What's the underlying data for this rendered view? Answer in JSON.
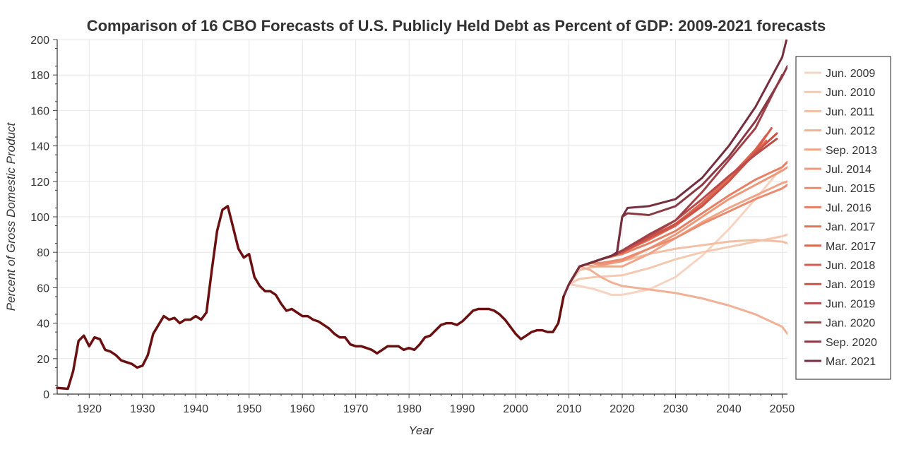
{
  "chart_data": {
    "type": "line",
    "title": "Comparison of 16 CBO Forecasts of U.S. Publicly Held Debt as Percent of GDP: 2009-2021 forecasts",
    "xlabel": "Year",
    "ylabel": "Percent of Gross Domestic Product",
    "xlim": [
      1914,
      2051
    ],
    "ylim": [
      0,
      200
    ],
    "grid": true,
    "legend_position": "right",
    "x_ticks": [
      1920,
      1930,
      1940,
      1950,
      1960,
      1970,
      1980,
      1990,
      2000,
      2010,
      2020,
      2030,
      2040,
      2050
    ],
    "y_ticks": [
      0,
      20,
      40,
      60,
      80,
      100,
      120,
      140,
      160,
      180,
      200
    ],
    "historical": {
      "x": [
        1914,
        1916,
        1917,
        1918,
        1919,
        1920,
        1921,
        1922,
        1923,
        1924,
        1925,
        1926,
        1927,
        1928,
        1929,
        1930,
        1931,
        1932,
        1933,
        1934,
        1935,
        1936,
        1937,
        1938,
        1939,
        1940,
        1941,
        1942,
        1943,
        1944,
        1945,
        1946,
        1947,
        1948,
        1949,
        1950,
        1951,
        1952,
        1953,
        1954,
        1955,
        1956,
        1957,
        1958,
        1959,
        1960,
        1961,
        1962,
        1963,
        1964,
        1965,
        1966,
        1967,
        1968,
        1969,
        1970,
        1971,
        1972,
        1973,
        1974,
        1975,
        1976,
        1977,
        1978,
        1979,
        1980,
        1981,
        1982,
        1983,
        1984,
        1985,
        1986,
        1987,
        1988,
        1989,
        1990,
        1991,
        1992,
        1993,
        1994,
        1995,
        1996,
        1997,
        1998,
        1999,
        2000,
        2001,
        2002,
        2003,
        2004,
        2005,
        2006,
        2007,
        2008,
        2009
      ],
      "y": [
        3.5,
        3,
        13,
        30,
        33,
        27,
        32,
        31,
        25,
        24,
        22,
        19,
        18,
        17,
        15,
        16,
        22,
        34,
        39,
        44,
        42,
        43,
        40,
        42,
        42,
        44,
        42,
        46,
        70,
        92,
        104,
        106,
        94,
        82,
        77,
        79,
        66,
        61,
        58,
        58,
        56,
        51,
        47,
        48,
        46,
        44,
        44,
        42,
        41,
        39,
        37,
        34,
        32,
        32,
        28,
        27,
        27,
        26,
        25,
        23,
        25,
        27,
        27,
        27,
        25,
        26,
        25,
        28,
        32,
        33,
        36,
        39,
        40,
        40,
        39,
        41,
        44,
        47,
        48,
        48,
        48,
        47,
        45,
        42,
        38,
        34,
        31,
        33,
        35,
        36,
        36,
        35,
        35,
        40,
        55
      ]
    },
    "series": [
      {
        "name": "Jun. 2009",
        "color": "#f6d4c1",
        "x": [
          2009,
          2010,
          2012,
          2015,
          2018,
          2020,
          2025,
          2030,
          2035,
          2040,
          2045,
          2050
        ],
        "y": [
          55,
          62,
          61,
          59,
          56,
          56,
          59,
          66,
          78,
          93,
          110,
          128
        ]
      },
      {
        "name": "Jun. 2010",
        "color": "#f4c9b2",
        "x": [
          2009,
          2010,
          2012,
          2015,
          2020,
          2025,
          2030,
          2035,
          2040,
          2045,
          2050,
          2051
        ],
        "y": [
          55,
          62,
          65,
          66,
          67,
          71,
          76,
          80,
          83,
          86,
          89,
          90
        ]
      },
      {
        "name": "Jun. 2011",
        "color": "#f3bfa4",
        "x": [
          2009,
          2010,
          2012,
          2015,
          2020,
          2025,
          2030,
          2035,
          2040,
          2045,
          2050,
          2051
        ],
        "y": [
          55,
          62,
          70,
          72,
          75,
          79,
          82,
          84,
          86,
          87,
          86,
          85
        ]
      },
      {
        "name": "Jun. 2012",
        "color": "#f1b196",
        "x": [
          2009,
          2010,
          2012,
          2014,
          2016,
          2018,
          2020,
          2025,
          2030,
          2035,
          2040,
          2045,
          2050,
          2051
        ],
        "y": [
          55,
          62,
          72,
          70,
          66,
          63,
          61,
          59,
          57,
          54,
          50,
          45,
          38,
          34
        ]
      },
      {
        "name": "Sep. 2013",
        "color": "#efa588",
        "x": [
          2009,
          2010,
          2012,
          2013,
          2015,
          2020,
          2025,
          2030,
          2035,
          2040,
          2045,
          2050,
          2051
        ],
        "y": [
          55,
          62,
          72,
          73,
          72,
          72,
          79,
          88,
          97,
          105,
          112,
          119,
          120
        ]
      },
      {
        "name": "Jul. 2014",
        "color": "#ed987b",
        "x": [
          2009,
          2010,
          2012,
          2014,
          2016,
          2020,
          2025,
          2030,
          2035,
          2040,
          2045,
          2050,
          2051
        ],
        "y": [
          55,
          62,
          72,
          74,
          73,
          75,
          82,
          90,
          100,
          110,
          118,
          126,
          128
        ]
      },
      {
        "name": "Jun. 2015",
        "color": "#ea8c6f",
        "x": [
          2009,
          2010,
          2012,
          2014,
          2016,
          2020,
          2025,
          2030,
          2035,
          2040,
          2045,
          2050,
          2051
        ],
        "y": [
          55,
          62,
          72,
          74,
          74,
          76,
          82,
          88,
          96,
          103,
          110,
          116,
          118
        ]
      },
      {
        "name": "Jul. 2016",
        "color": "#e67f64",
        "x": [
          2009,
          2010,
          2012,
          2014,
          2016,
          2020,
          2025,
          2030,
          2035,
          2040,
          2045,
          2050,
          2051
        ],
        "y": [
          55,
          62,
          72,
          74,
          76,
          79,
          85,
          92,
          102,
          112,
          121,
          128,
          131
        ]
      },
      {
        "name": "Jan. 2017",
        "color": "#e2735b",
        "x": [
          2009,
          2010,
          2012,
          2014,
          2016,
          2020,
          2025,
          2030,
          2035,
          2040,
          2045,
          2047
        ],
        "y": [
          55,
          62,
          72,
          74,
          76,
          80,
          87,
          95,
          107,
          121,
          136,
          143
        ]
      },
      {
        "name": "Mar. 2017",
        "color": "#dd6852",
        "x": [
          2009,
          2010,
          2012,
          2014,
          2016,
          2020,
          2025,
          2030,
          2035,
          2040,
          2045,
          2047
        ],
        "y": [
          55,
          62,
          72,
          74,
          76,
          80,
          88,
          96,
          108,
          122,
          138,
          146
        ]
      },
      {
        "name": "Jun. 2018",
        "color": "#d55d4c",
        "x": [
          2009,
          2010,
          2012,
          2014,
          2016,
          2018,
          2020,
          2025,
          2030,
          2035,
          2040,
          2045,
          2048
        ],
        "y": [
          55,
          62,
          72,
          74,
          76,
          78,
          80,
          88,
          95,
          106,
          120,
          137,
          150
        ]
      },
      {
        "name": "Jan. 2019",
        "color": "#cd5246",
        "x": [
          2009,
          2010,
          2012,
          2014,
          2016,
          2018,
          2020,
          2025,
          2030,
          2035,
          2040,
          2045,
          2049
        ],
        "y": [
          55,
          62,
          72,
          74,
          76,
          78,
          80,
          88,
          96,
          106,
          120,
          136,
          147
        ]
      },
      {
        "name": "Jun. 2019",
        "color": "#b94b4a",
        "x": [
          2009,
          2010,
          2012,
          2014,
          2016,
          2018,
          2020,
          2025,
          2030,
          2035,
          2040,
          2045,
          2049
        ],
        "y": [
          55,
          62,
          72,
          74,
          76,
          78,
          81,
          89,
          98,
          110,
          123,
          135,
          144
        ]
      },
      {
        "name": "Jan. 2020",
        "color": "#a04048",
        "x": [
          2009,
          2010,
          2012,
          2014,
          2016,
          2018,
          2020,
          2025,
          2030,
          2035,
          2040,
          2045,
          2050
        ],
        "y": [
          55,
          62,
          72,
          74,
          76,
          78,
          81,
          90,
          98,
          114,
          132,
          150,
          180
        ]
      },
      {
        "name": "Sep. 2020",
        "color": "#8a3844",
        "x": [
          2009,
          2010,
          2012,
          2014,
          2016,
          2018,
          2019,
          2020,
          2021,
          2025,
          2030,
          2035,
          2040,
          2045,
          2050,
          2051
        ],
        "y": [
          55,
          62,
          72,
          74,
          76,
          78,
          79,
          100,
          102,
          101,
          106,
          118,
          134,
          154,
          179,
          185
        ]
      },
      {
        "name": "Mar. 2021",
        "color": "#742e3e",
        "x": [
          2009,
          2010,
          2012,
          2014,
          2016,
          2018,
          2019,
          2020,
          2021,
          2025,
          2030,
          2035,
          2040,
          2045,
          2050,
          2051
        ],
        "y": [
          55,
          62,
          72,
          74,
          76,
          78,
          80,
          100,
          105,
          106,
          110,
          122,
          140,
          162,
          190,
          202
        ]
      }
    ]
  }
}
